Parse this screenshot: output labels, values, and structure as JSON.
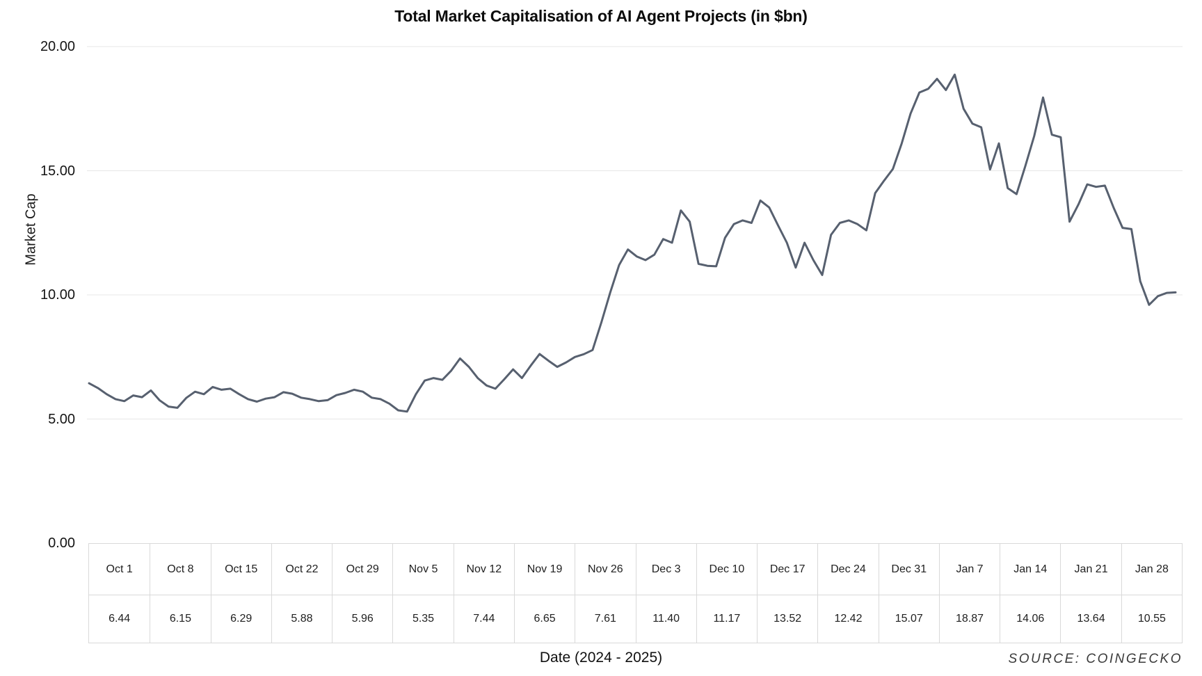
{
  "title": "Total Market Capitalisation of AI Agent Projects (in $bn)",
  "y_axis": {
    "label": "Market Cap",
    "ticks": [
      "20.00",
      "15.00",
      "10.00",
      "5.00",
      "0.00"
    ]
  },
  "x_axis": {
    "label": "Date (2024 - 2025)"
  },
  "source": "SOURCE: COINGECKO",
  "table": {
    "dates": [
      "Oct 1",
      "Oct 8",
      "Oct 15",
      "Oct 22",
      "Oct 29",
      "Nov 5",
      "Nov 12",
      "Nov 19",
      "Nov 26",
      "Dec 3",
      "Dec 10",
      "Dec 17",
      "Dec 24",
      "Dec 31",
      "Jan 7",
      "Jan 14",
      "Jan 21",
      "Jan 28"
    ],
    "values": [
      "6.44",
      "6.15",
      "6.29",
      "5.88",
      "5.96",
      "5.35",
      "7.44",
      "6.65",
      "7.61",
      "11.40",
      "11.17",
      "13.52",
      "12.42",
      "15.07",
      "18.87",
      "14.06",
      "13.64",
      "10.55"
    ]
  },
  "chart_data": {
    "type": "line",
    "title": "Total Market Capitalisation of AI Agent Projects (in $bn)",
    "xlabel": "Date (2024 - 2025)",
    "ylabel": "Market Cap",
    "ylim": [
      0,
      20
    ],
    "y_ticks": [
      0,
      5,
      10,
      15,
      20
    ],
    "grid": true,
    "legend": false,
    "line_color": "#57606f",
    "weekly_anchors": {
      "categories": [
        "Oct 1",
        "Oct 8",
        "Oct 15",
        "Oct 22",
        "Oct 29",
        "Nov 5",
        "Nov 12",
        "Nov 19",
        "Nov 26",
        "Dec 3",
        "Dec 10",
        "Dec 17",
        "Dec 24",
        "Dec 31",
        "Jan 7",
        "Jan 14",
        "Jan 21",
        "Jan 28"
      ],
      "values": [
        6.44,
        6.15,
        6.29,
        5.88,
        5.96,
        5.35,
        7.44,
        6.65,
        7.61,
        11.4,
        11.17,
        13.52,
        12.42,
        15.07,
        18.87,
        14.06,
        13.64,
        10.55
      ]
    },
    "series": [
      {
        "name": "Total market cap ($bn)",
        "x_start": "Oct 1 2024",
        "cadence": "daily",
        "values": [
          6.44,
          6.25,
          6.0,
          5.8,
          5.72,
          5.95,
          5.88,
          6.15,
          5.75,
          5.5,
          5.45,
          5.85,
          6.1,
          6.0,
          6.29,
          6.18,
          6.22,
          6.0,
          5.8,
          5.7,
          5.82,
          5.88,
          6.08,
          6.02,
          5.86,
          5.8,
          5.72,
          5.76,
          5.96,
          6.05,
          6.18,
          6.1,
          5.86,
          5.8,
          5.62,
          5.35,
          5.3,
          6.0,
          6.55,
          6.65,
          6.58,
          6.95,
          7.44,
          7.1,
          6.65,
          6.35,
          6.22,
          6.6,
          7.0,
          6.65,
          7.15,
          7.62,
          7.35,
          7.1,
          7.28,
          7.5,
          7.61,
          7.78,
          8.9,
          10.1,
          11.2,
          11.83,
          11.55,
          11.4,
          11.62,
          12.25,
          12.1,
          13.4,
          12.95,
          11.25,
          11.17,
          11.15,
          12.3,
          12.85,
          13.0,
          12.9,
          13.8,
          13.52,
          12.8,
          12.1,
          11.1,
          12.1,
          11.4,
          10.8,
          12.42,
          12.9,
          13.0,
          12.85,
          12.6,
          14.1,
          14.6,
          15.07,
          16.1,
          17.3,
          18.15,
          18.3,
          18.7,
          18.25,
          18.87,
          17.5,
          16.9,
          16.75,
          15.05,
          16.1,
          14.3,
          14.06,
          15.2,
          16.4,
          17.95,
          16.45,
          16.35,
          12.95,
          13.64,
          14.45,
          14.35,
          14.4,
          13.5,
          12.7,
          12.65,
          10.55,
          9.6,
          9.95,
          10.08,
          10.1
        ]
      }
    ]
  }
}
